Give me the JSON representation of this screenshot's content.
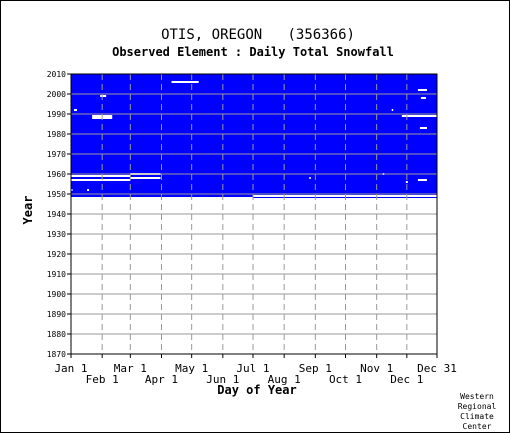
{
  "chart_data": {
    "type": "heatmap",
    "title": "OTIS, OREGON   (356366)",
    "subtitle": "Observed Element : Daily Total Snowfall",
    "xlabel": "Day of Year",
    "ylabel": "Year",
    "xlim": [
      1,
      365
    ],
    "ylim": [
      1870,
      2010
    ],
    "x_ticks_upper": [
      {
        "label": "Jan 1",
        "day": 1
      },
      {
        "label": "Mar 1",
        "day": 60
      },
      {
        "label": "May 1",
        "day": 121
      },
      {
        "label": "Jul 1",
        "day": 182
      },
      {
        "label": "Sep 1",
        "day": 244
      },
      {
        "label": "Nov 1",
        "day": 305
      },
      {
        "label": "Dec 31",
        "day": 365
      }
    ],
    "x_ticks_lower": [
      {
        "label": "Feb 1",
        "day": 32
      },
      {
        "label": "Apr 1",
        "day": 91
      },
      {
        "label": "Jun 1",
        "day": 152
      },
      {
        "label": "Aug 1",
        "day": 213
      },
      {
        "label": "Oct 1",
        "day": 274
      },
      {
        "label": "Dec 1",
        "day": 335
      }
    ],
    "y_ticks": [
      1870,
      1880,
      1890,
      1900,
      1910,
      1920,
      1930,
      1940,
      1950,
      1960,
      1970,
      1980,
      1990,
      2000,
      2010
    ],
    "grid": true,
    "data_color": "#0000ff",
    "coverage": {
      "start_year": 1948,
      "end_year": 2010
    },
    "missing_segments": [
      {
        "year": 1999,
        "day_start": 30,
        "day_end": 36
      },
      {
        "year": 1992,
        "day_start": 4,
        "day_end": 7
      },
      {
        "year": 1989,
        "day_start": 22,
        "day_end": 42
      },
      {
        "year": 1988,
        "day_start": 22,
        "day_end": 42
      },
      {
        "year": 2006,
        "day_start": 101,
        "day_end": 128
      },
      {
        "year": 1960,
        "day_start": 60,
        "day_end": 90
      },
      {
        "year": 1958,
        "day_start": 60,
        "day_end": 90
      },
      {
        "year": 1959,
        "day_start": 1,
        "day_end": 60
      },
      {
        "year": 1957,
        "day_start": 1,
        "day_end": 60
      },
      {
        "year": 1952,
        "day_start": 1,
        "day_end": 2
      },
      {
        "year": 1952,
        "day_start": 17,
        "day_end": 19
      },
      {
        "year": 1958,
        "day_start": 238,
        "day_end": 239
      },
      {
        "year": 1960,
        "day_start": 311,
        "day_end": 312
      },
      {
        "year": 1956,
        "day_start": 334,
        "day_end": 336
      },
      {
        "year": 1957,
        "day_start": 346,
        "day_end": 355
      },
      {
        "year": 2002,
        "day_start": 346,
        "day_end": 355
      },
      {
        "year": 1998,
        "day_start": 349,
        "day_end": 354
      },
      {
        "year": 1992,
        "day_start": 320,
        "day_end": 321
      },
      {
        "year": 1989,
        "day_start": 330,
        "day_end": 365
      },
      {
        "year": 1983,
        "day_start": 348,
        "day_end": 355
      },
      {
        "year": 1949,
        "day_start": 182,
        "day_end": 365
      },
      {
        "year": 1948,
        "day_start": 1,
        "day_end": 182
      }
    ]
  },
  "credit": [
    "Western",
    "Regional",
    "Climate",
    "Center"
  ]
}
